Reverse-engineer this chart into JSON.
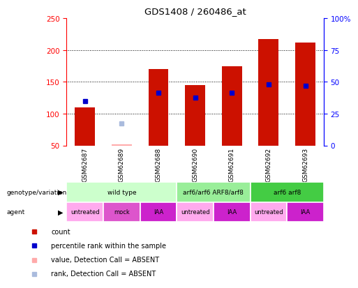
{
  "title": "GDS1408 / 260486_at",
  "samples": [
    "GSM62687",
    "GSM62689",
    "GSM62688",
    "GSM62690",
    "GSM62691",
    "GSM62692",
    "GSM62693"
  ],
  "bar_values": [
    110,
    52,
    170,
    145,
    175,
    218,
    212
  ],
  "bar_absent": [
    false,
    true,
    false,
    false,
    false,
    false,
    false
  ],
  "percentile_values": [
    120,
    null,
    133,
    125,
    133,
    146,
    144
  ],
  "percentile_absent": [
    false,
    false,
    false,
    false,
    false,
    false,
    false
  ],
  "absent_rank_values": [
    null,
    85,
    null,
    null,
    null,
    null,
    null
  ],
  "ylim_left": [
    50,
    250
  ],
  "ylim_right": [
    0,
    100
  ],
  "yticks_left": [
    50,
    100,
    150,
    200,
    250
  ],
  "yticks_right": [
    0,
    25,
    50,
    75,
    100
  ],
  "ytick_labels_right": [
    "0",
    "25",
    "50",
    "75",
    "100%"
  ],
  "bar_color": "#cc1100",
  "bar_absent_color": "#ffaaaa",
  "percentile_color": "#0000cc",
  "percentile_absent_color": "#aabbdd",
  "rank_absent_color": "#aabbdd",
  "genotype_groups": [
    {
      "label": "wild type",
      "start": 0,
      "end": 3,
      "color": "#ccffcc"
    },
    {
      "label": "arf6/arf6 ARF8/arf8",
      "start": 3,
      "end": 5,
      "color": "#99ee99"
    },
    {
      "label": "arf6 arf8",
      "start": 5,
      "end": 7,
      "color": "#44cc44"
    }
  ],
  "agent_values": [
    "untreated",
    "mock",
    "IAA",
    "untreated",
    "IAA",
    "untreated",
    "IAA"
  ],
  "agent_colors": [
    "#ffaaee",
    "#dd55cc",
    "#cc22cc",
    "#ffaaee",
    "#cc22cc",
    "#ffaaee",
    "#cc22cc"
  ],
  "legend_items": [
    {
      "color": "#cc1100",
      "label": "count"
    },
    {
      "color": "#0000cc",
      "label": "percentile rank within the sample"
    },
    {
      "color": "#ffaaaa",
      "label": "value, Detection Call = ABSENT"
    },
    {
      "color": "#aabbdd",
      "label": "rank, Detection Call = ABSENT"
    }
  ],
  "bar_width": 0.55,
  "background_color": "#ffffff",
  "xticklabel_bg": "#cccccc"
}
